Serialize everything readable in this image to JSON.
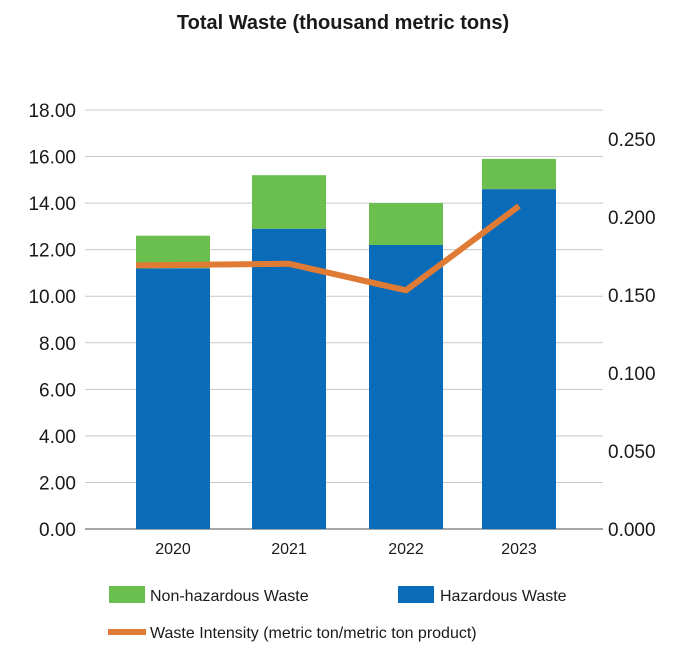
{
  "chart_data": {
    "type": "bar",
    "stacked": true,
    "title": "Total Waste (thousand metric tons)",
    "categories": [
      "2020",
      "2021",
      "2022",
      "2023"
    ],
    "series": [
      {
        "name": "Hazardous Waste",
        "type": "bar",
        "axis": "left",
        "color": "#0a6bb8",
        "values": [
          11.2,
          12.9,
          12.2,
          14.6
        ]
      },
      {
        "name": "Non-hazardous Waste",
        "type": "bar",
        "axis": "left",
        "color": "#6bbf4e",
        "values": [
          1.4,
          2.3,
          1.8,
          1.3
        ]
      },
      {
        "name": "Waste Intensity (metric ton/metric ton product)",
        "type": "line",
        "axis": "right",
        "color": "#e07b35",
        "values": [
          0.169,
          0.17,
          0.153,
          0.207
        ]
      }
    ],
    "y_left": {
      "range": [
        0,
        18
      ],
      "ticks": [
        "0.00",
        "2.00",
        "4.00",
        "6.00",
        "8.00",
        "10.00",
        "12.00",
        "14.00",
        "16.00",
        "18.00"
      ]
    },
    "y_right": {
      "range": [
        0,
        0.25
      ],
      "ticks": [
        "0.000",
        "0.050",
        "0.100",
        "0.150",
        "0.200",
        "0.250"
      ]
    },
    "grid": true,
    "legend_position": "bottom"
  },
  "legend": {
    "nonhaz": "Non-hazardous Waste",
    "haz": "Hazardous Waste",
    "intensity": "Waste Intensity (metric ton/metric ton product)"
  }
}
